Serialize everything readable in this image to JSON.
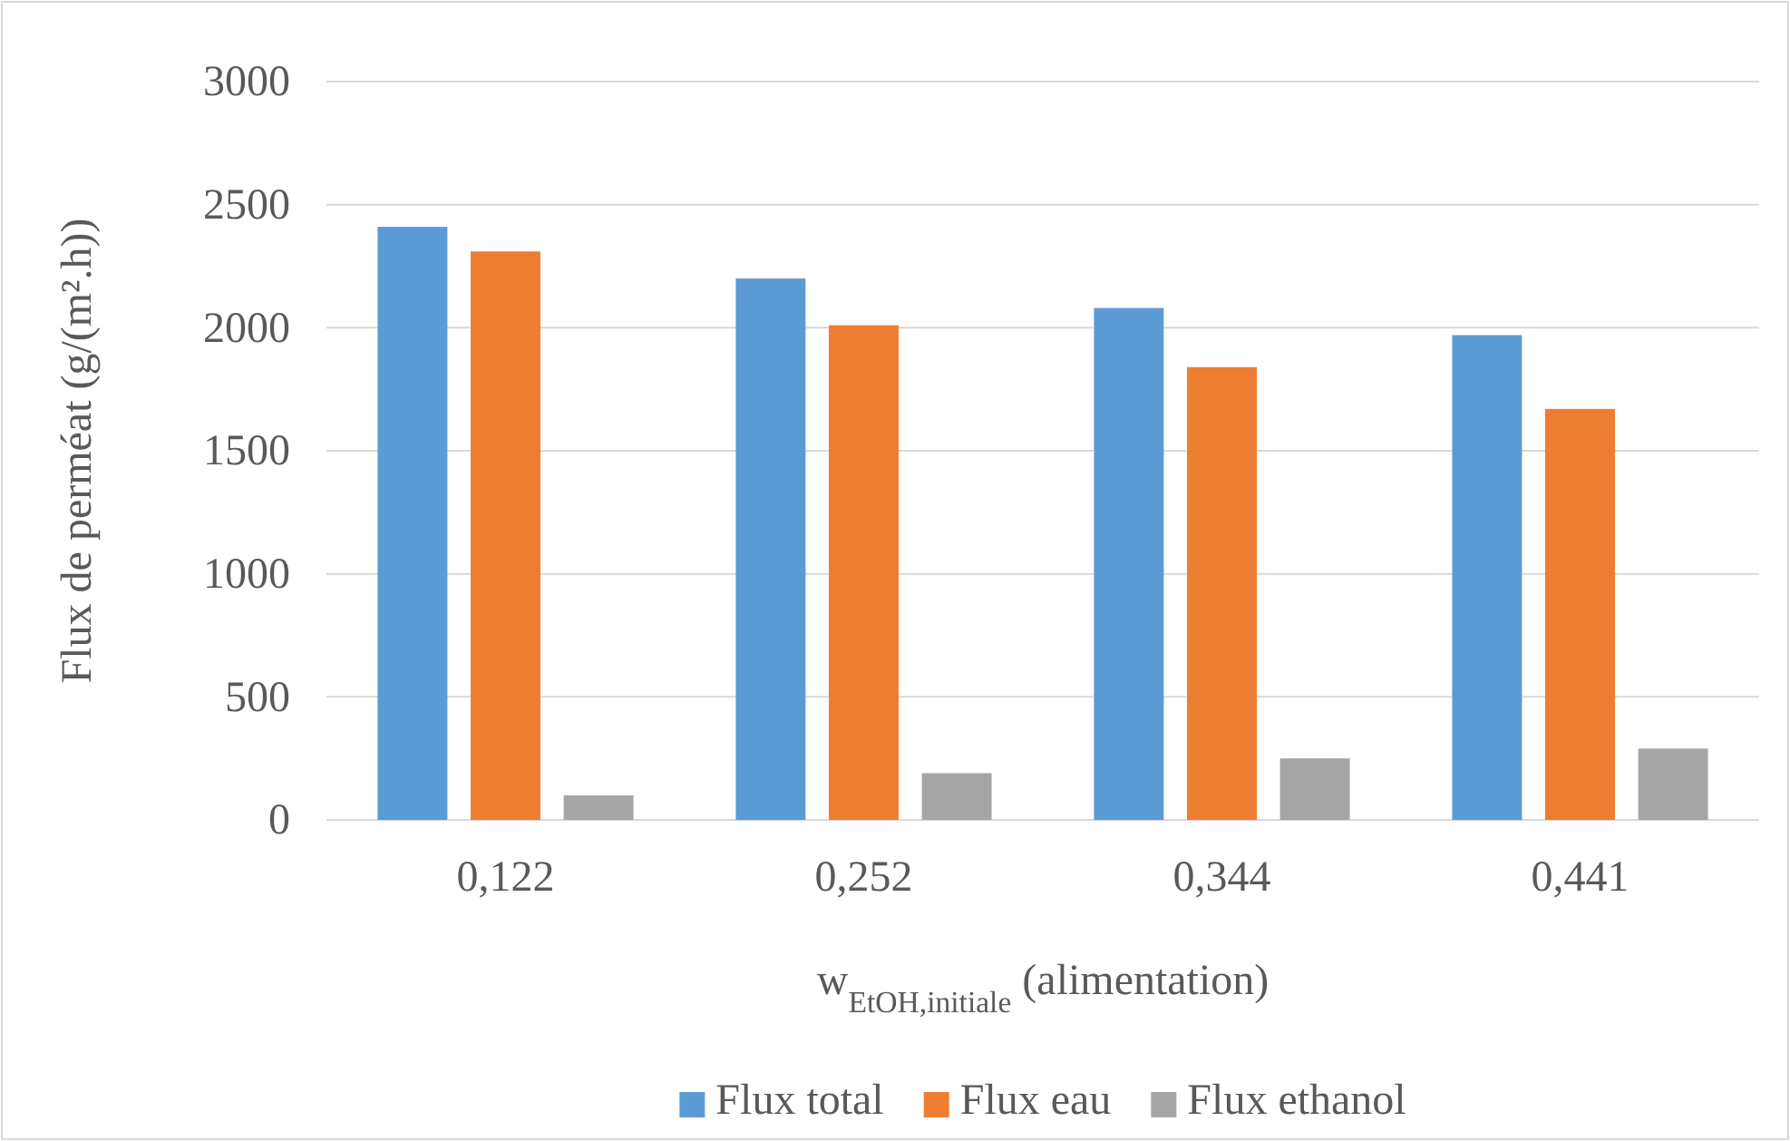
{
  "chart_data": {
    "type": "bar",
    "xlabel": "w$_{EtOH,initiale}$ (alimentation)",
    "ylabel": "Flux de perméat (g/(m².h))",
    "categories": [
      "0,122",
      "0,252",
      "0,344",
      "0,441"
    ],
    "series": [
      {
        "name": "Flux total",
        "color": "#5b9bd5",
        "values": [
          2410,
          2200,
          2080,
          1970
        ]
      },
      {
        "name": "Flux eau",
        "color": "#ed7d31",
        "values": [
          2310,
          2010,
          1840,
          1670
        ]
      },
      {
        "name": "Flux ethanol",
        "color": "#a5a5a5",
        "values": [
          100,
          190,
          250,
          290
        ]
      }
    ],
    "ylim": [
      0,
      3000
    ],
    "yticks": [
      0,
      500,
      1000,
      1500,
      2000,
      2500,
      3000
    ],
    "grid": "y",
    "legend": "bottom"
  }
}
